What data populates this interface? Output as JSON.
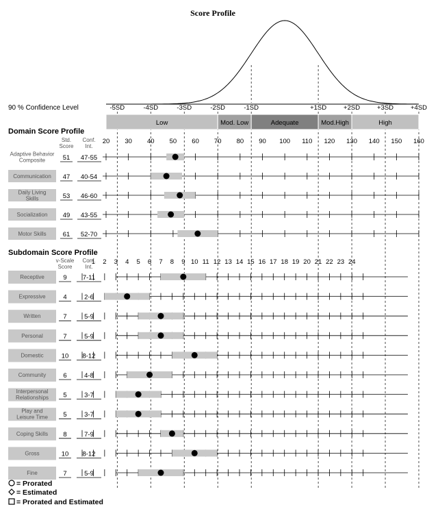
{
  "chart_data": {
    "type": "scatter",
    "title": "Score Profile",
    "confidence_label": "90 % Confidence Level",
    "sd_labels": [
      "-5SD",
      "-4SD",
      "-3SD",
      "-2SD",
      "-1SD",
      "+1SD",
      "+2SD",
      "+3SD",
      "+4SD"
    ],
    "sd_positions": [
      25,
      40,
      55,
      70,
      85,
      115,
      130,
      145,
      160
    ],
    "bands": [
      {
        "label": "Low",
        "from": 20,
        "to": 70,
        "color": "#c0c0c0"
      },
      {
        "label": "Mod. Low",
        "from": 70,
        "to": 85,
        "color": "#a0a0a0"
      },
      {
        "label": "Adequate",
        "from": 85,
        "to": 115,
        "color": "#808080"
      },
      {
        "label": "Mod.High",
        "from": 115,
        "to": 130,
        "color": "#a0a0a0"
      },
      {
        "label": "High",
        "from": 130,
        "to": 160,
        "color": "#c0c0c0"
      }
    ],
    "domain": {
      "heading": "Domain Score Profile",
      "col_score": "Std. Score",
      "col_ci": "Conf. Int.",
      "xlim": [
        20,
        160
      ],
      "ticks": [
        20,
        30,
        40,
        50,
        60,
        70,
        80,
        90,
        100,
        110,
        120,
        130,
        140,
        150,
        160
      ],
      "rows": [
        {
          "label": "Adaptive Behavior Composite",
          "score": 51,
          "ci": "47-55",
          "ci_low": 47,
          "ci_high": 55,
          "boxed": false
        },
        {
          "label": "Communication",
          "score": 47,
          "ci": "40-54",
          "ci_low": 40,
          "ci_high": 54,
          "boxed": true
        },
        {
          "label": "Daily Living Skills",
          "score": 53,
          "ci": "46-60",
          "ci_low": 46,
          "ci_high": 60,
          "boxed": true
        },
        {
          "label": "Socialization",
          "score": 49,
          "ci": "43-55",
          "ci_low": 43,
          "ci_high": 55,
          "boxed": true
        },
        {
          "label": "Motor Skills",
          "score": 61,
          "ci": "52-70",
          "ci_low": 52,
          "ci_high": 70,
          "boxed": true
        }
      ]
    },
    "subdomain": {
      "heading": "Subdomain Score Profile",
      "col_score": "v-Scale Score",
      "col_ci": "Conf. Int.",
      "ticks": [
        1,
        2,
        3,
        4,
        5,
        6,
        7,
        8,
        9,
        10,
        11,
        12,
        13,
        14,
        15,
        16,
        17,
        18,
        19,
        20,
        21,
        22,
        23,
        24
      ],
      "rows": [
        {
          "label": "Receptive",
          "score": 9,
          "ci": "7-11",
          "ci_low": 7,
          "ci_high": 11
        },
        {
          "label": "Expressive",
          "score": 4,
          "ci": "2-6",
          "ci_low": 2,
          "ci_high": 6
        },
        {
          "label": "Written",
          "score": 7,
          "ci": "5-9",
          "ci_low": 5,
          "ci_high": 9
        },
        {
          "label": "Personal",
          "score": 7,
          "ci": "5-9",
          "ci_low": 5,
          "ci_high": 9
        },
        {
          "label": "Domestic",
          "score": 10,
          "ci": "8-12",
          "ci_low": 8,
          "ci_high": 12
        },
        {
          "label": "Community",
          "score": 6,
          "ci": "4-8",
          "ci_low": 4,
          "ci_high": 8
        },
        {
          "label": "Interpersonal Relationships",
          "score": 5,
          "ci": "3-7",
          "ci_low": 3,
          "ci_high": 7
        },
        {
          "label": "Play and Leisure Time",
          "score": 5,
          "ci": "3-7",
          "ci_low": 3,
          "ci_high": 7
        },
        {
          "label": "Coping Skills",
          "score": 8,
          "ci": "7-9",
          "ci_low": 7,
          "ci_high": 9
        },
        {
          "label": "Gross",
          "score": 10,
          "ci": "8-12",
          "ci_low": 8,
          "ci_high": 12
        },
        {
          "label": "Fine",
          "score": 7,
          "ci": "5-9",
          "ci_low": 5,
          "ci_high": 9
        }
      ]
    },
    "legend": [
      "= Prorated",
      "= Estimated",
      "= Prorated and Estimated"
    ]
  }
}
